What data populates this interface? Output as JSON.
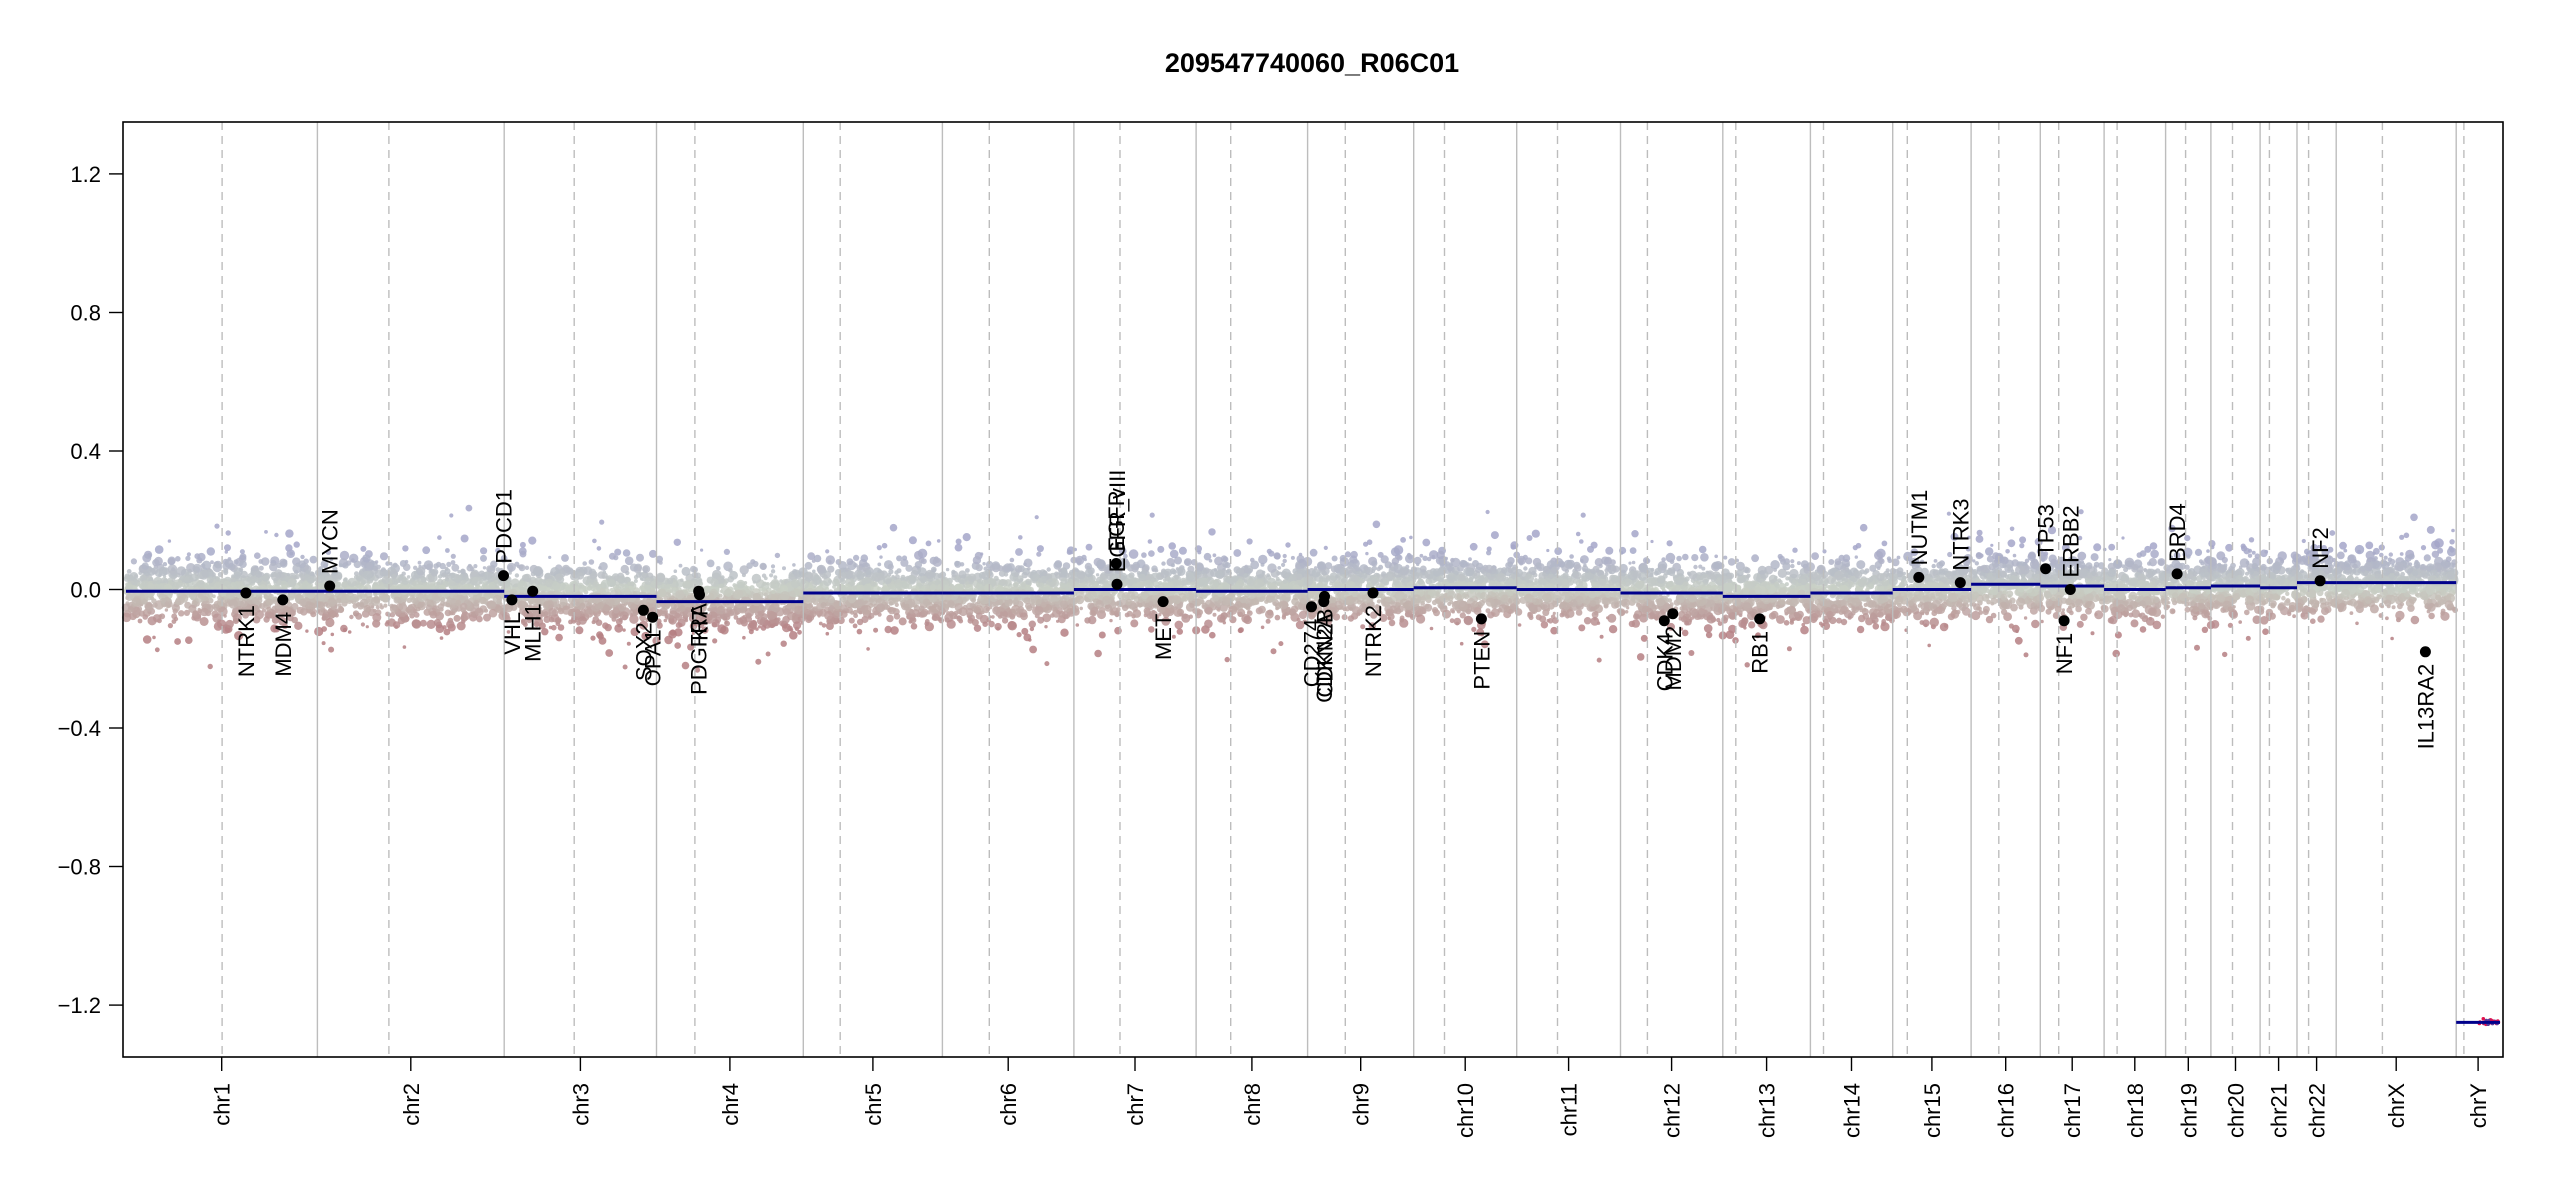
{
  "chart_data": {
    "type": "scatter",
    "title": "209547740060_R06C01",
    "xlabel": "",
    "ylabel": "",
    "ylim": [
      -1.35,
      1.35
    ],
    "yticks": [
      "1.2",
      "0.8",
      "0.4",
      "0.0",
      "−0.4",
      "−0.8",
      "−1.2"
    ],
    "ytick_values": [
      1.2,
      0.8,
      0.4,
      0.0,
      -0.4,
      -0.8,
      -1.2
    ],
    "grid": false,
    "chromosomes": [
      {
        "name": "chr1",
        "length": 249,
        "centromere": 125,
        "segment": -0.005
      },
      {
        "name": "chr2",
        "length": 243,
        "centromere": 93,
        "segment": -0.005
      },
      {
        "name": "chr3",
        "length": 198,
        "centromere": 91,
        "segment": -0.02
      },
      {
        "name": "chr4",
        "length": 191,
        "centromere": 50,
        "segment": -0.035
      },
      {
        "name": "chr5",
        "length": 181,
        "centromere": 48,
        "segment": -0.01
      },
      {
        "name": "chr6",
        "length": 171,
        "centromere": 61,
        "segment": -0.01
      },
      {
        "name": "chr7",
        "length": 159,
        "centromere": 60,
        "segment": 0.0
      },
      {
        "name": "chr8",
        "length": 145,
        "centromere": 45,
        "segment": -0.005
      },
      {
        "name": "chr9",
        "length": 138,
        "centromere": 49,
        "segment": 0.0
      },
      {
        "name": "chr10",
        "length": 134,
        "centromere": 40,
        "segment": 0.005
      },
      {
        "name": "chr11",
        "length": 135,
        "centromere": 53,
        "segment": 0.0
      },
      {
        "name": "chr12",
        "length": 133,
        "centromere": 35,
        "segment": -0.01
      },
      {
        "name": "chr13",
        "length": 114,
        "centromere": 17,
        "segment": -0.02
      },
      {
        "name": "chr14",
        "length": 107,
        "centromere": 17,
        "segment": -0.01
      },
      {
        "name": "chr15",
        "length": 102,
        "centromere": 19,
        "segment": 0.0
      },
      {
        "name": "chr16",
        "length": 90,
        "centromere": 36,
        "segment": 0.015
      },
      {
        "name": "chr17",
        "length": 83,
        "centromere": 24,
        "segment": 0.01
      },
      {
        "name": "chr18",
        "length": 80,
        "centromere": 17,
        "segment": 0.0
      },
      {
        "name": "chr19",
        "length": 59,
        "centromere": 26,
        "segment": 0.005
      },
      {
        "name": "chr20",
        "length": 64,
        "centromere": 28,
        "segment": 0.01
      },
      {
        "name": "chr21",
        "length": 48,
        "centromere": 12,
        "segment": 0.005
      },
      {
        "name": "chr22",
        "length": 51,
        "centromere": 15,
        "segment": 0.02
      },
      {
        "name": "chrX",
        "length": 156,
        "centromere": 60,
        "segment": 0.02
      },
      {
        "name": "chrY",
        "length": 57,
        "centromere": 10,
        "segment": -1.25
      }
    ],
    "genes": [
      {
        "label": "NTRK1",
        "chr": "chr1",
        "pos": 156,
        "value": -0.01,
        "side": "below"
      },
      {
        "label": "MDM4",
        "chr": "chr1",
        "pos": 204,
        "value": -0.03,
        "side": "below"
      },
      {
        "label": "MYCN",
        "chr": "chr2",
        "pos": 16,
        "value": 0.01,
        "side": "above"
      },
      {
        "label": "PDCD1",
        "chr": "chr2",
        "pos": 242,
        "value": 0.04,
        "side": "above"
      },
      {
        "label": "VHL",
        "chr": "chr3",
        "pos": 10,
        "value": -0.03,
        "side": "below"
      },
      {
        "label": "MLH1",
        "chr": "chr3",
        "pos": 37,
        "value": -0.005,
        "side": "below"
      },
      {
        "label": "SOX2",
        "chr": "chr3",
        "pos": 181,
        "value": -0.06,
        "side": "below"
      },
      {
        "label": "OPA1",
        "chr": "chr3",
        "pos": 193,
        "value": -0.08,
        "side": "below"
      },
      {
        "label": "PDGFRA",
        "chr": "chr4",
        "pos": 55,
        "value": -0.005,
        "side": "below"
      },
      {
        "label": "KIT",
        "chr": "chr4",
        "pos": 56,
        "value": -0.015,
        "side": "below"
      },
      {
        "label": "EGFR",
        "chr": "chr7",
        "pos": 55,
        "value": 0.075,
        "side": "above"
      },
      {
        "label": "EGFR_vIII",
        "chr": "chr7",
        "pos": 56,
        "value": 0.015,
        "side": "above"
      },
      {
        "label": "MET",
        "chr": "chr7",
        "pos": 116,
        "value": -0.035,
        "side": "below"
      },
      {
        "label": "CD274",
        "chr": "chr9",
        "pos": 5,
        "value": -0.05,
        "side": "below"
      },
      {
        "label": "CDKN2A",
        "chr": "chr9",
        "pos": 21,
        "value": -0.035,
        "side": "below"
      },
      {
        "label": "CDKN2B",
        "chr": "chr9",
        "pos": 22,
        "value": -0.02,
        "side": "below"
      },
      {
        "label": "NTRK2",
        "chr": "chr9",
        "pos": 85,
        "value": -0.01,
        "side": "below"
      },
      {
        "label": "PTEN",
        "chr": "chr10",
        "pos": 88,
        "value": -0.085,
        "side": "below"
      },
      {
        "label": "CDK4",
        "chr": "chr12",
        "pos": 57,
        "value": -0.09,
        "side": "below"
      },
      {
        "label": "MDM2",
        "chr": "chr12",
        "pos": 68,
        "value": -0.07,
        "side": "below"
      },
      {
        "label": "RB1",
        "chr": "chr13",
        "pos": 48,
        "value": -0.085,
        "side": "below"
      },
      {
        "label": "NUTM1",
        "chr": "chr15",
        "pos": 34,
        "value": 0.035,
        "side": "above"
      },
      {
        "label": "NTRK3",
        "chr": "chr15",
        "pos": 88,
        "value": 0.02,
        "side": "above"
      },
      {
        "label": "TP53",
        "chr": "chr17",
        "pos": 7,
        "value": 0.06,
        "side": "above"
      },
      {
        "label": "NF1",
        "chr": "chr17",
        "pos": 31,
        "value": -0.09,
        "side": "below"
      },
      {
        "label": "ERBB2",
        "chr": "chr17",
        "pos": 39,
        "value": 0.0,
        "side": "above"
      },
      {
        "label": "BRD4",
        "chr": "chr19",
        "pos": 15,
        "value": 0.045,
        "side": "above"
      },
      {
        "label": "NF2",
        "chr": "chr22",
        "pos": 30,
        "value": 0.025,
        "side": "above"
      },
      {
        "label": "IL13RA2",
        "chr": "chrX",
        "pos": 116,
        "value": -0.18,
        "side": "below"
      }
    ],
    "colors": {
      "high": "#a4a6c9",
      "neutral": "#c9d0c6",
      "low": "#b57f83",
      "segment": "#00008b",
      "chr_border": "#bdbdbd",
      "centromere": "#bdbdbd",
      "gene_point": "#000000",
      "chrY_point": "#e0114d"
    }
  }
}
